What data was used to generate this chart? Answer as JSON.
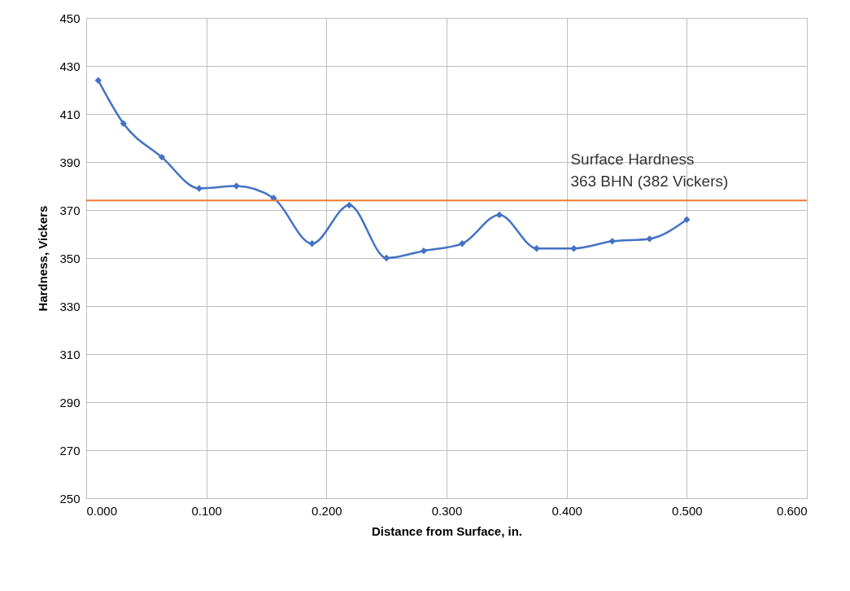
{
  "chart_data": {
    "type": "line",
    "xlabel": "Distance from Surface, in.",
    "ylabel": "Hardness, Vickers",
    "x": [
      0.01,
      0.031,
      0.063,
      0.094,
      0.125,
      0.156,
      0.188,
      0.219,
      0.25,
      0.281,
      0.313,
      0.344,
      0.375,
      0.406,
      0.438,
      0.469,
      0.5
    ],
    "series": [
      {
        "color": "#4472c4",
        "values": [
          424,
          406,
          392,
          379,
          380,
          375,
          356,
          372,
          350,
          353,
          356,
          368,
          354,
          354,
          357,
          358,
          366
        ]
      }
    ],
    "xlim": [
      0,
      0.6
    ],
    "xticks": [
      {
        "value": 0,
        "label": "0.000"
      },
      {
        "value": 0.1,
        "label": "0.100"
      },
      {
        "value": 0.2,
        "label": "0.200"
      },
      {
        "value": 0.3,
        "label": "0.300"
      },
      {
        "value": 0.4,
        "label": "0.400"
      },
      {
        "value": 0.5,
        "label": "0.500"
      },
      {
        "value": 0.6,
        "label": "0.600"
      }
    ],
    "ylim": [
      250,
      450
    ],
    "yticks": [
      250,
      270,
      290,
      310,
      330,
      350,
      370,
      390,
      410,
      430,
      450
    ],
    "ref_lines": [
      {
        "axis": "y",
        "value": 374,
        "color": "#ed7d31",
        "label": "Surface Hardness\n363 BHN (382 Vickers)"
      }
    ],
    "grid": true,
    "marker": "diamond",
    "line_style": "solid"
  }
}
